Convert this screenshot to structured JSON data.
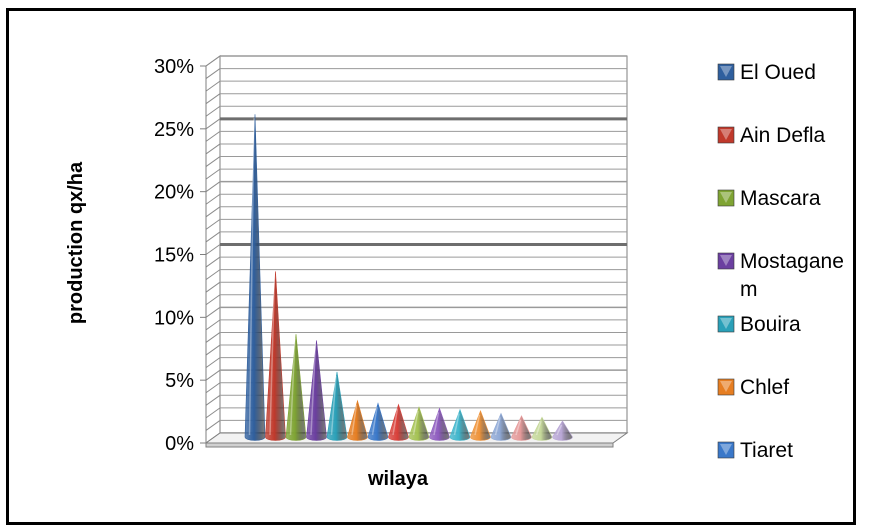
{
  "chart_data": {
    "type": "bar",
    "style": "3d-cone",
    "xlabel": "wilaya",
    "ylabel": "production qx/ha",
    "ylim": [
      0,
      30
    ],
    "y_ticks": [
      "0%",
      "5%",
      "10%",
      "15%",
      "20%",
      "25%",
      "30%"
    ],
    "grid": true,
    "legend_position": "right",
    "series": [
      {
        "name": "El Oued",
        "value": 26,
        "color": "#2f5f9e"
      },
      {
        "name": "Ain Defla",
        "value": 13.5,
        "color": "#c0392b"
      },
      {
        "name": "Mascara",
        "value": 8.5,
        "color": "#7fa433"
      },
      {
        "name": "Mostaganem",
        "value": 8,
        "color": "#6b3fa0"
      },
      {
        "name": "Bouira",
        "value": 5.5,
        "color": "#2aa0b8"
      },
      {
        "name": "Chlef",
        "value": 3.2,
        "color": "#e67e22"
      },
      {
        "name": "Tiaret",
        "value": 3.0,
        "color": "#3a78c9"
      },
      {
        "name": "",
        "value": 2.9,
        "color": "#d9403a"
      },
      {
        "name": "",
        "value": 2.7,
        "color": "#a5c253"
      },
      {
        "name": "",
        "value": 2.6,
        "color": "#8e5bbf"
      },
      {
        "name": "",
        "value": 2.5,
        "color": "#3fb6cc"
      },
      {
        "name": "",
        "value": 2.4,
        "color": "#f0943a"
      },
      {
        "name": "",
        "value": 2.2,
        "color": "#8fa9d6"
      },
      {
        "name": "",
        "value": 2.0,
        "color": "#e69a9a"
      },
      {
        "name": "",
        "value": 1.9,
        "color": "#c6d99a"
      },
      {
        "name": "",
        "value": 1.6,
        "color": "#b9a7d6"
      }
    ],
    "legend": [
      {
        "label": "El Oued",
        "color": "#2f5f9e"
      },
      {
        "label": "Ain Defla",
        "color": "#c0392b"
      },
      {
        "label": "Mascara",
        "color": "#7fa433"
      },
      {
        "label": "Mostagane",
        "label2": "m",
        "color": "#6b3fa0"
      },
      {
        "label": "Bouira",
        "color": "#2aa0b8"
      },
      {
        "label": "Chlef",
        "color": "#e67e22"
      },
      {
        "label": "Tiaret",
        "color": "#3a78c9"
      }
    ]
  }
}
